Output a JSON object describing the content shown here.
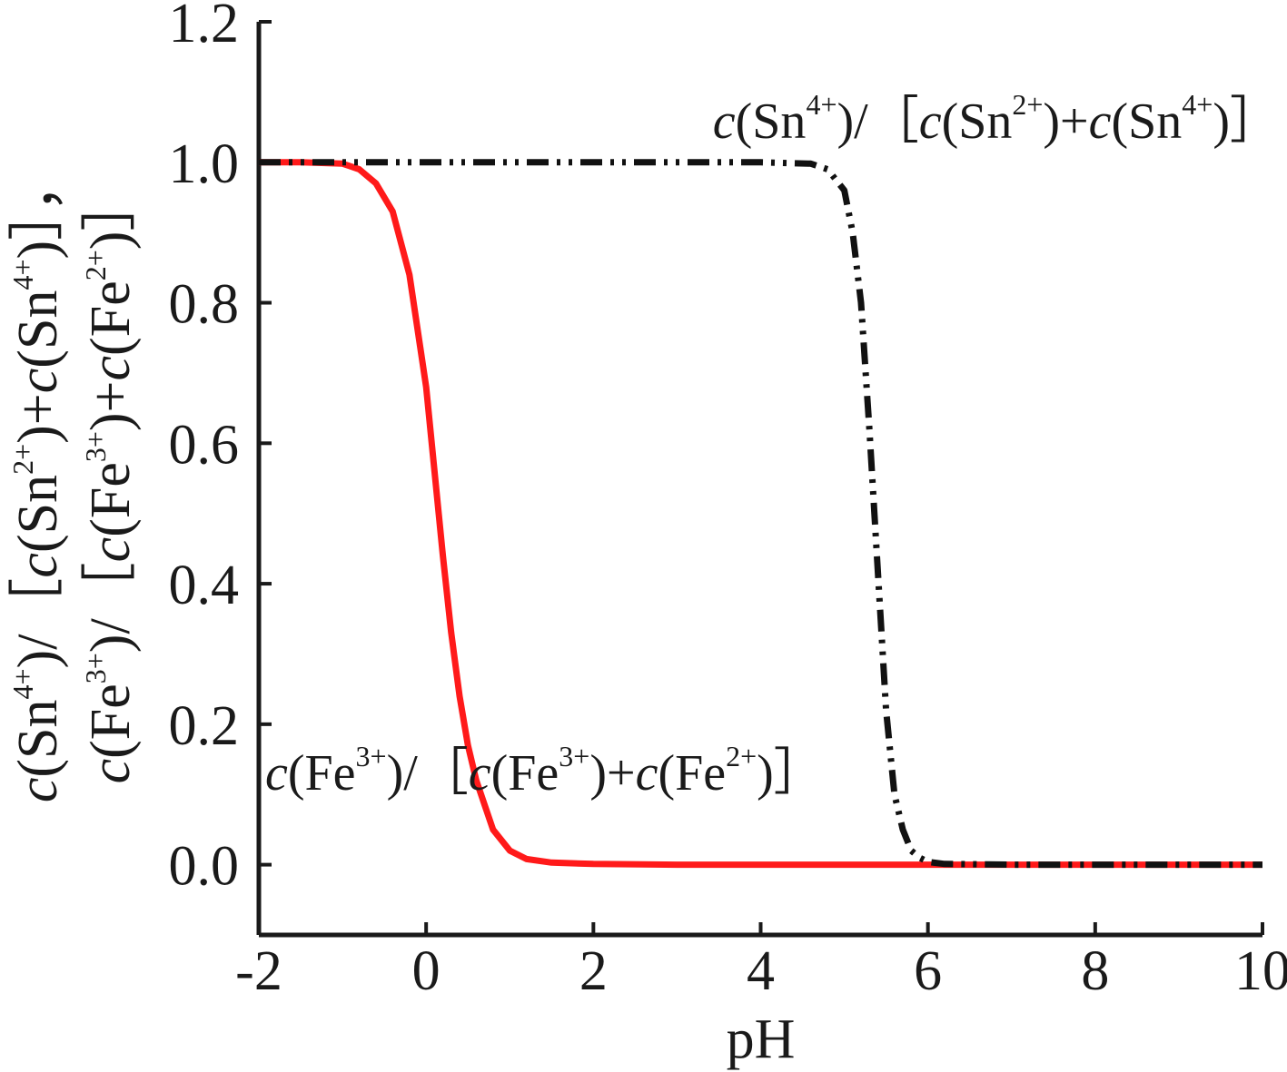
{
  "chart_data": {
    "type": "line",
    "title": "",
    "xlabel": "pH",
    "ylabel_line1": {
      "parts": [
        {
          "t": "c",
          "i": true
        },
        {
          "t": "(Sn"
        },
        {
          "t": "4+",
          "s": true
        },
        {
          "t": ")/［"
        },
        {
          "t": "c",
          "i": true
        },
        {
          "t": "(Sn"
        },
        {
          "t": "2+",
          "s": true
        },
        {
          "t": ")+"
        },
        {
          "t": "c",
          "i": true
        },
        {
          "t": "(Sn"
        },
        {
          "t": "4+",
          "s": true
        },
        {
          "t": ")］，"
        }
      ]
    },
    "ylabel_line2": {
      "parts": [
        {
          "t": "c",
          "i": true
        },
        {
          "t": "(Fe"
        },
        {
          "t": "3+",
          "s": true
        },
        {
          "t": ")/［"
        },
        {
          "t": "c",
          "i": true
        },
        {
          "t": "(Fe"
        },
        {
          "t": "3+",
          "s": true
        },
        {
          "t": ")+"
        },
        {
          "t": "c",
          "i": true
        },
        {
          "t": "(Fe"
        },
        {
          "t": "2+",
          "s": true
        },
        {
          "t": ")］"
        }
      ]
    },
    "xlim": [
      -2,
      10
    ],
    "ylim": [
      -0.1,
      1.2
    ],
    "xticks": [
      -2,
      0,
      2,
      4,
      6,
      8,
      10
    ],
    "xtick_labels": [
      "-2",
      "0",
      "2",
      "4",
      "6",
      "8",
      "10"
    ],
    "yticks": [
      0.0,
      0.2,
      0.4,
      0.6,
      0.8,
      1.0,
      1.2
    ],
    "ytick_labels": [
      "0.0",
      "0.2",
      "0.4",
      "0.6",
      "0.8",
      "1.0",
      "1.2"
    ],
    "grid": false,
    "series": [
      {
        "color": "#ff1a1a",
        "style": "solid",
        "label_parts": [
          {
            "t": "c",
            "i": true
          },
          {
            "t": "(Fe"
          },
          {
            "t": "3+",
            "s": true
          },
          {
            "t": ")/［"
          },
          {
            "t": "c",
            "i": true
          },
          {
            "t": "(Fe"
          },
          {
            "t": "3+",
            "s": true
          },
          {
            "t": ")+"
          },
          {
            "t": "c",
            "i": true
          },
          {
            "t": "(Fe"
          },
          {
            "t": "2+",
            "s": true
          },
          {
            "t": ")］"
          }
        ],
        "x": [
          -2.0,
          -1.5,
          -1.0,
          -0.8,
          -0.6,
          -0.4,
          -0.2,
          0.0,
          0.1,
          0.2,
          0.3,
          0.4,
          0.5,
          0.6,
          0.8,
          1.0,
          1.2,
          1.5,
          2.0,
          3.0,
          4.0,
          6.0,
          8.0,
          10.0
        ],
        "y": [
          1.0,
          1.0,
          0.998,
          0.99,
          0.97,
          0.93,
          0.84,
          0.68,
          0.56,
          0.44,
          0.33,
          0.24,
          0.17,
          0.12,
          0.05,
          0.02,
          0.008,
          0.003,
          0.001,
          0.0,
          0.0,
          0.0,
          0.0,
          0.0
        ]
      },
      {
        "color": "#111111",
        "style": "dash-dot-dot",
        "label_parts": [
          {
            "t": "c",
            "i": true
          },
          {
            "t": "(Sn"
          },
          {
            "t": "4+",
            "s": true
          },
          {
            "t": ")/［"
          },
          {
            "t": "c",
            "i": true
          },
          {
            "t": "(Sn"
          },
          {
            "t": "2+",
            "s": true
          },
          {
            "t": ")+"
          },
          {
            "t": "c",
            "i": true
          },
          {
            "t": "(Sn"
          },
          {
            "t": "4+",
            "s": true
          },
          {
            "t": ")］"
          }
        ],
        "x": [
          -2.0,
          -1.0,
          0.0,
          2.0,
          4.0,
          4.6,
          4.8,
          5.0,
          5.1,
          5.2,
          5.3,
          5.4,
          5.5,
          5.6,
          5.7,
          5.8,
          5.9,
          6.0,
          6.2,
          7.0,
          8.0,
          10.0
        ],
        "y": [
          1.0,
          1.0,
          1.0,
          1.0,
          1.0,
          0.998,
          0.99,
          0.96,
          0.9,
          0.8,
          0.62,
          0.42,
          0.22,
          0.1,
          0.05,
          0.02,
          0.01,
          0.004,
          0.001,
          0.0,
          0.0,
          0.0
        ]
      }
    ]
  }
}
